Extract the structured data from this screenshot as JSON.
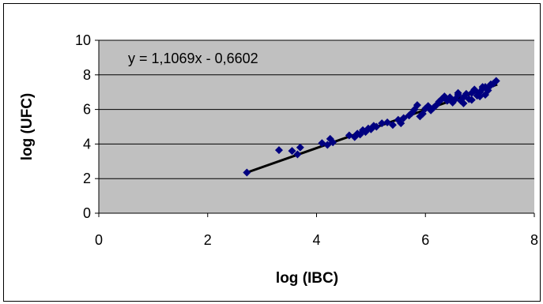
{
  "chart_data": {
    "type": "scatter",
    "xlabel": "log (IBC)",
    "ylabel": "log (UFC)",
    "xlim": [
      0,
      8
    ],
    "ylim": [
      0,
      10
    ],
    "x_ticks": [
      "0",
      "2",
      "4",
      "6",
      "8"
    ],
    "y_ticks": [
      "0",
      "2",
      "4",
      "6",
      "8",
      "10"
    ],
    "grid": "horizontal",
    "plot_background": "#c0c0c0",
    "marker_color": "#000080",
    "trendline": {
      "equation": "y = 1,1069x - 0,6602",
      "slope": 1.1069,
      "intercept": -0.6602,
      "x_range": [
        2.72,
        7.32
      ],
      "color": "#000000"
    },
    "series": [
      {
        "x": [
          2.72,
          3.31,
          3.55,
          3.65,
          3.7,
          4.1,
          4.2,
          4.25,
          4.3,
          4.6,
          4.7,
          4.75,
          4.8,
          4.85,
          4.9,
          4.95,
          5.0,
          5.05,
          5.1,
          5.2,
          5.3,
          5.4,
          5.5,
          5.55,
          5.6,
          5.7,
          5.75,
          5.8,
          5.85,
          5.9,
          5.95,
          6.0,
          6.05,
          6.1,
          6.15,
          6.2,
          6.25,
          6.3,
          6.35,
          6.4,
          6.45,
          6.5,
          6.55,
          6.6,
          6.65,
          6.7,
          6.75,
          6.8,
          6.85,
          6.9,
          6.95,
          7.0,
          7.05,
          7.1,
          7.15,
          7.2,
          7.25,
          7.3,
          6.7,
          6.85,
          7.0,
          7.1,
          6.6,
          6.9,
          7.05,
          7.2
        ],
        "y": [
          2.35,
          3.65,
          3.6,
          3.4,
          3.8,
          4.05,
          3.95,
          4.3,
          4.1,
          4.5,
          4.4,
          4.6,
          4.55,
          4.8,
          4.7,
          4.9,
          4.85,
          5.05,
          5.0,
          5.2,
          5.25,
          5.1,
          5.4,
          5.2,
          5.5,
          5.65,
          5.8,
          6.0,
          6.25,
          5.6,
          5.75,
          6.05,
          6.2,
          5.95,
          6.1,
          6.25,
          6.45,
          6.6,
          6.75,
          6.5,
          6.7,
          6.4,
          6.6,
          6.85,
          6.5,
          6.7,
          6.9,
          6.6,
          6.95,
          7.1,
          6.8,
          7.0,
          7.2,
          7.3,
          7.1,
          7.4,
          7.5,
          7.65,
          6.35,
          6.55,
          6.75,
          6.85,
          6.95,
          7.15,
          7.3,
          7.45
        ]
      }
    ]
  }
}
